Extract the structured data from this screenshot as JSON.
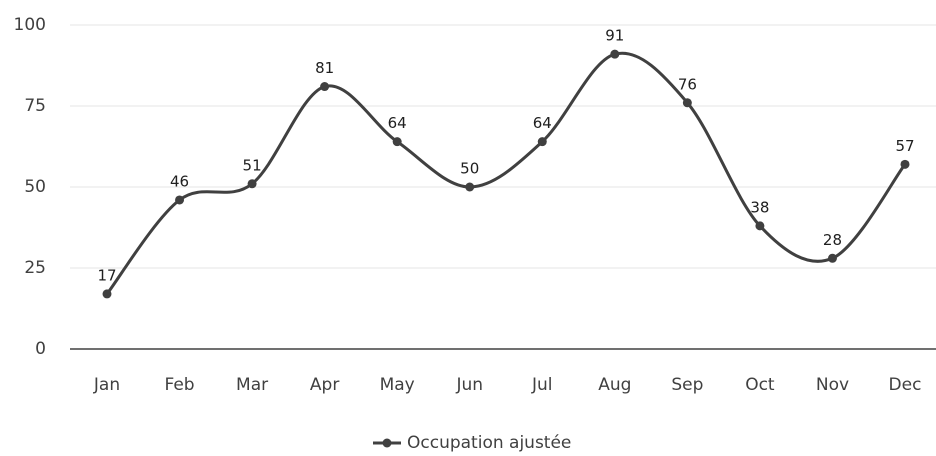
{
  "chart_data": {
    "type": "line",
    "categories": [
      "Jan",
      "Feb",
      "Mar",
      "Apr",
      "May",
      "Jun",
      "Jul",
      "Aug",
      "Sep",
      "Oct",
      "Nov",
      "Dec"
    ],
    "series": [
      {
        "name": "Occupation ajustée",
        "color": "#404040",
        "values": [
          17,
          46,
          51,
          81,
          64,
          50,
          64,
          91,
          76,
          38,
          28,
          57
        ]
      }
    ],
    "ylim": [
      0,
      100
    ],
    "yticks": [
      0,
      25,
      50,
      75,
      100
    ],
    "grid": true,
    "smooth": true,
    "legend": "bottom"
  }
}
